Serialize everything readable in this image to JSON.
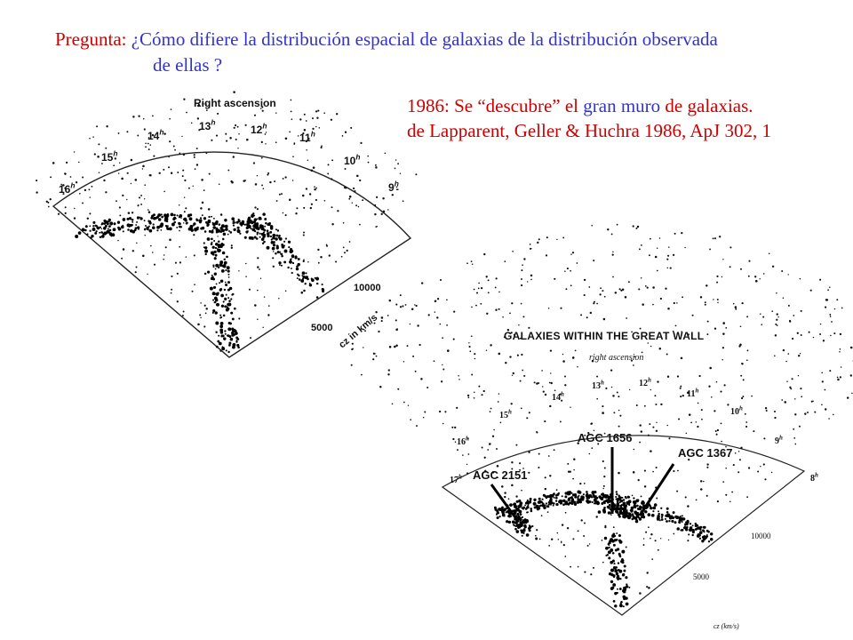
{
  "question": {
    "label": "Pregunta: ",
    "text_line1": "¿Cómo difiere la distribución espacial de galaxias de la distribución observada",
    "text_line2": "de ellas ?"
  },
  "note": {
    "line1_year": "1986: Se “descubre” el ",
    "line1_blue": "gran muro",
    "line1_end": " de galaxias.",
    "line2": "de Lapparent, Geller & Huchra 1986, ApJ 302, 1"
  },
  "figure1": {
    "title": "Right ascension",
    "hours": [
      "16",
      "15",
      "14",
      "13",
      "12",
      "11",
      "10",
      "9"
    ],
    "hour_superscript": "h",
    "radial_ticks": [
      "10000",
      "5000"
    ],
    "radial_axis_label": "cz  in km/s"
  },
  "figure2": {
    "title": "GALAXIES WITHIN THE GREAT WALL",
    "subtitle": "right ascension",
    "hours": [
      "17",
      "16",
      "15",
      "14",
      "13",
      "12",
      "11",
      "10",
      "9",
      "8"
    ],
    "hour_superscript": "h",
    "radial_ticks": [
      "10000",
      "5000"
    ],
    "radial_axis_label": "cz  (km/s)",
    "clusters": [
      "AGC 2151",
      "AGC 1656",
      "AGC 1367"
    ]
  },
  "colors": {
    "accent_red": "#cc0000",
    "accent_blue": "#3333cc"
  }
}
